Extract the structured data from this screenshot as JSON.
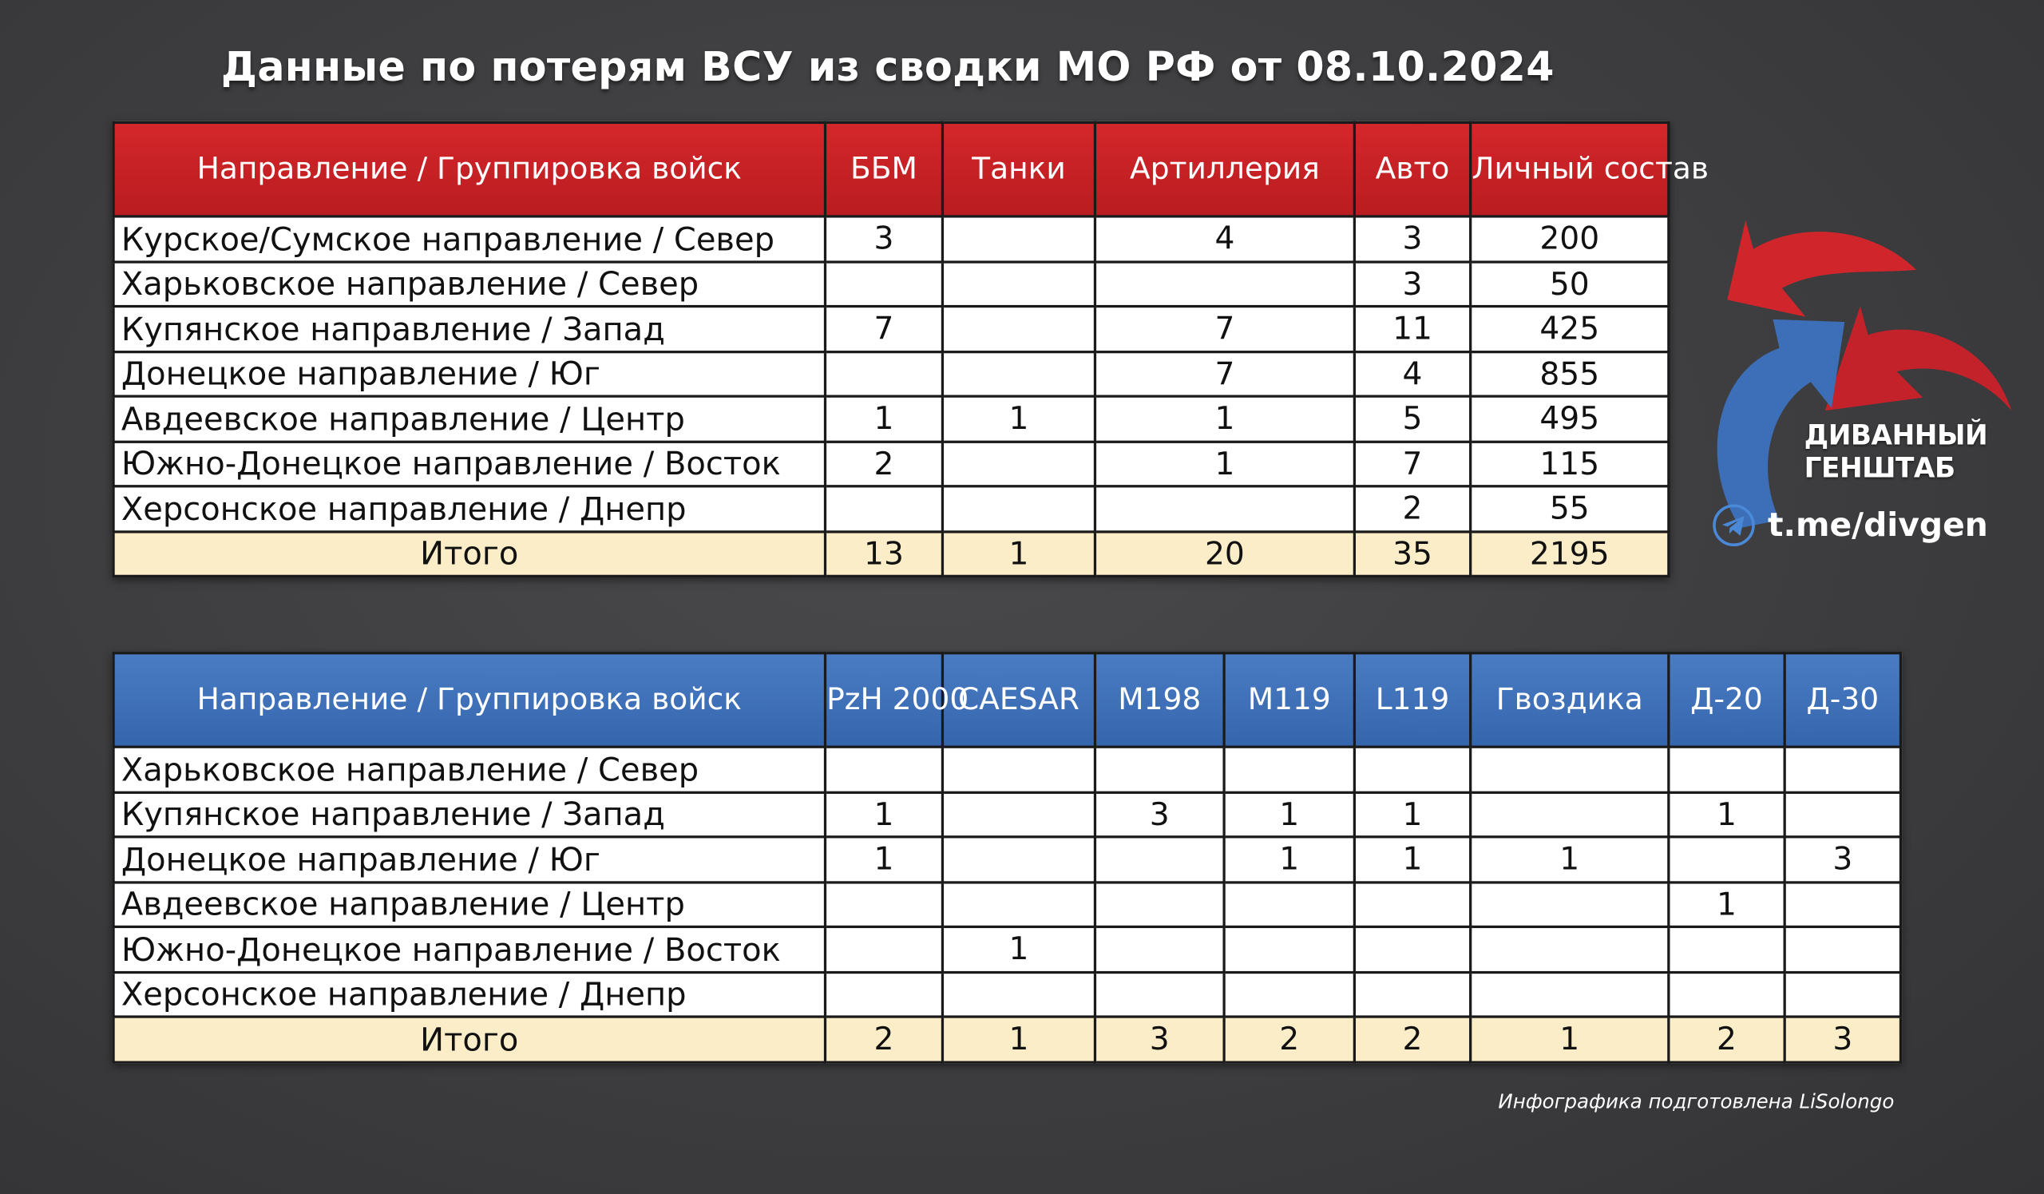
{
  "title": "Данные по потерям ВСУ из сводки МО РФ от 08.10.2024",
  "table1": {
    "headers": [
      "Направление / Группировка войск",
      "ББМ",
      "Танки",
      "Артиллерия",
      "Авто",
      "Личный состав"
    ],
    "rows": [
      [
        "Курское/Сумское направление / Север",
        "3",
        "",
        "4",
        "3",
        "200"
      ],
      [
        "Харьковское направление / Север",
        "",
        "",
        "",
        "3",
        "50"
      ],
      [
        "Купянское направление / Запад",
        "7",
        "",
        "7",
        "11",
        "425"
      ],
      [
        "Донецкое направление / Юг",
        "",
        "",
        "7",
        "4",
        "855"
      ],
      [
        "Авдеевское направление / Центр",
        "1",
        "1",
        "1",
        "5",
        "495"
      ],
      [
        "Южно-Донецкое направление / Восток",
        "2",
        "",
        "1",
        "7",
        "115"
      ],
      [
        "Херсонское направление / Днепр",
        "",
        "",
        "",
        "2",
        "55"
      ]
    ],
    "total": [
      "Итого",
      "13",
      "1",
      "20",
      "35",
      "2195"
    ]
  },
  "table2": {
    "headers": [
      "Направление / Группировка войск",
      "PzH 2000",
      "CAESAR",
      "M198",
      "M119",
      "L119",
      "Гвоздика",
      "Д-20",
      "Д-30"
    ],
    "rows": [
      [
        "Харьковское направление / Север",
        "",
        "",
        "",
        "",
        "",
        "",
        "",
        ""
      ],
      [
        "Купянское направление / Запад",
        "1",
        "",
        "3",
        "1",
        "1",
        "",
        "1",
        ""
      ],
      [
        "Донецкое направление / Юг",
        "1",
        "",
        "",
        "1",
        "1",
        "1",
        "",
        "3"
      ],
      [
        "Авдеевское направление / Центр",
        "",
        "",
        "",
        "",
        "",
        "",
        "1",
        ""
      ],
      [
        "Южно-Донецкое направление / Восток",
        "",
        "1",
        "",
        "",
        "",
        "",
        "",
        ""
      ],
      [
        "Херсонское направление / Днепр",
        "",
        "",
        "",
        "",
        "",
        "",
        "",
        ""
      ]
    ],
    "total": [
      "Итого",
      "2",
      "1",
      "3",
      "2",
      "2",
      "1",
      "2",
      "3"
    ]
  },
  "logo": {
    "line1": "ДИВАННЫЙ",
    "line2": "ГЕНШТАБ",
    "link": "t.me/divgen",
    "icon": "telegram-icon",
    "colors": {
      "red": "#d0262b",
      "blue": "#3d6fb8"
    }
  },
  "credit": "Инфографика подготовлена LiSolongo"
}
